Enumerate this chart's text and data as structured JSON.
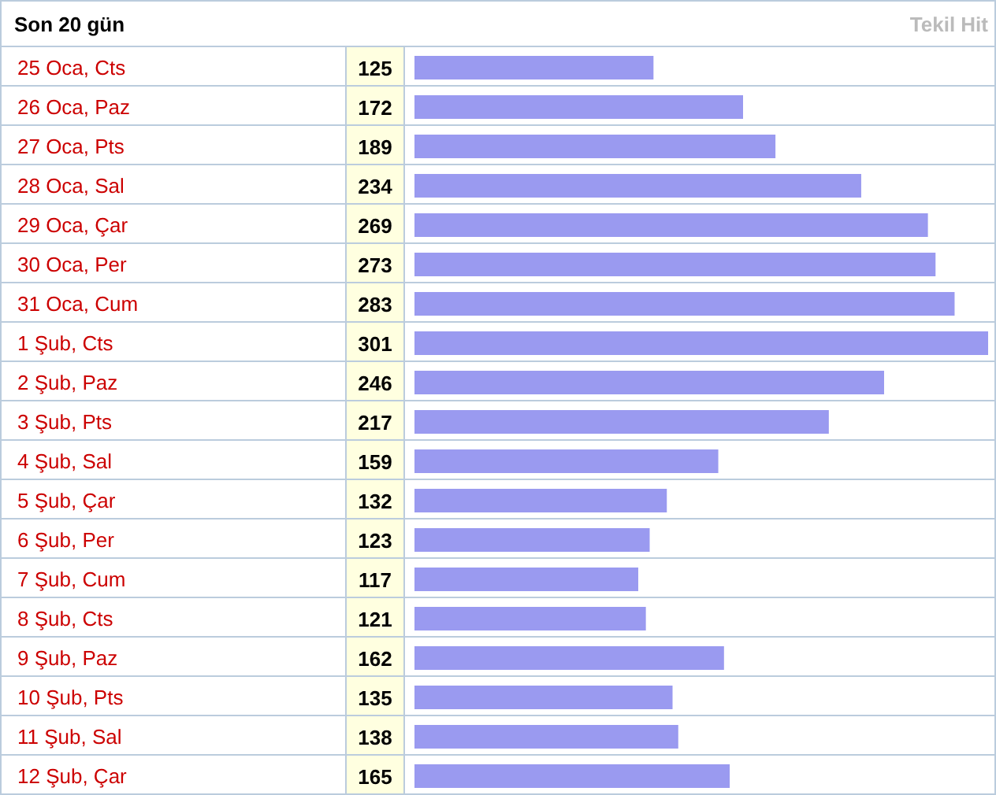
{
  "chart_data": {
    "type": "bar",
    "orientation": "horizontal",
    "title": "Son 20 gün",
    "subtitle": "Tekil Hit",
    "categories": [
      "25 Oca, Cts",
      "26 Oca, Paz",
      "27 Oca, Pts",
      "28 Oca, Sal",
      "29 Oca, Çar",
      "30 Oca, Per",
      "31 Oca, Cum",
      "1 Şub, Cts",
      "2 Şub, Paz",
      "3 Şub, Pts",
      "4 Şub, Sal",
      "5 Şub, Çar",
      "6 Şub, Per",
      "7 Şub, Cum",
      "8 Şub, Cts",
      "9 Şub, Paz",
      "10 Şub, Pts",
      "11 Şub, Sal",
      "12 Şub, Çar"
    ],
    "values": [
      125,
      172,
      189,
      234,
      269,
      273,
      283,
      301,
      246,
      217,
      159,
      132,
      123,
      117,
      121,
      162,
      135,
      138,
      165
    ],
    "color": "#9a9af0",
    "data_labels": true
  }
}
